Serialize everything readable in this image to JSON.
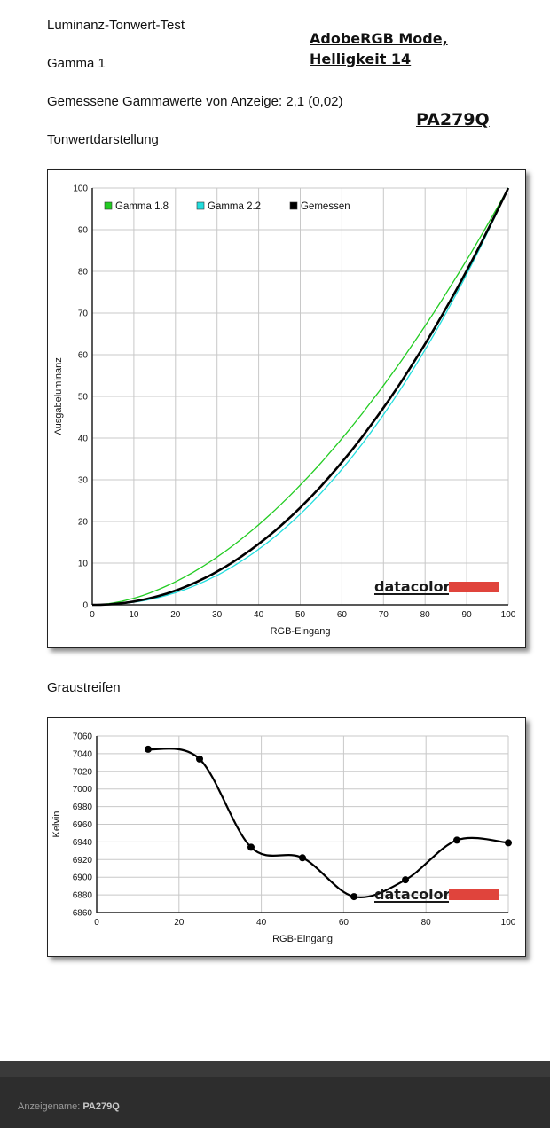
{
  "header": {
    "title": "Luminanz-Tonwert-Test",
    "gamma": "Gamma 1",
    "measured": "Gemessene Gammawerte von Anzeige: 2,1 (0,02)",
    "section1": "Tonwertdarstellung",
    "section2": "Graustreifen"
  },
  "annotations": {
    "mode_line1": "AdobeRGB Mode,",
    "mode_line2": "Helligkeit 14",
    "model": "PA279Q"
  },
  "logo": "datacolor",
  "footer": {
    "label": "Anzeigename:",
    "value": "PA279Q"
  },
  "colors": {
    "gamma18": "#22cc22",
    "gamma22": "#22dddd",
    "measured": "#000000",
    "logo_bar": "#e0443c"
  },
  "chart_data": [
    {
      "type": "line",
      "title": "Tonwertdarstellung",
      "xlabel": "RGB-Eingang",
      "ylabel": "Ausgabeluminanz",
      "xlim": [
        0,
        100
      ],
      "ylim": [
        0,
        100
      ],
      "xticks": [
        0,
        10,
        20,
        30,
        40,
        50,
        60,
        70,
        80,
        90,
        100
      ],
      "yticks": [
        0,
        10,
        20,
        30,
        40,
        50,
        60,
        70,
        80,
        90,
        100
      ],
      "grid": true,
      "legend": "top-left",
      "series": [
        {
          "name": "Gamma 1.8",
          "color": "#22cc22",
          "gamma": 1.8,
          "x": [
            0,
            10,
            20,
            30,
            40,
            50,
            60,
            70,
            80,
            90,
            100
          ],
          "y": [
            0,
            1.6,
            5.5,
            11.5,
            19.2,
            28.7,
            39.9,
            52.6,
            66.9,
            82.7,
            100
          ]
        },
        {
          "name": "Gamma 2.2",
          "color": "#22dddd",
          "gamma": 2.2,
          "x": [
            0,
            10,
            20,
            30,
            40,
            50,
            60,
            70,
            80,
            90,
            100
          ],
          "y": [
            0,
            0.6,
            2.9,
            7.1,
            13.3,
            21.8,
            32.5,
            45.6,
            61.2,
            79.3,
            100
          ]
        },
        {
          "name": "Gemessen",
          "color": "#000000",
          "gamma": 2.1,
          "x": [
            0,
            10,
            20,
            30,
            40,
            50,
            60,
            70,
            80,
            90,
            100
          ],
          "y": [
            0,
            0.8,
            3.4,
            8.0,
            14.6,
            23.3,
            34.2,
            47.3,
            62.6,
            80.2,
            100
          ]
        }
      ]
    },
    {
      "type": "line",
      "title": "Graustreifen",
      "xlabel": "RGB-Eingang",
      "ylabel": "Kelvin",
      "xlim": [
        0,
        100
      ],
      "ylim": [
        6860,
        7060
      ],
      "xticks": [
        0,
        20,
        40,
        60,
        80,
        100
      ],
      "yticks": [
        6860,
        6880,
        6900,
        6920,
        6940,
        6960,
        6980,
        7000,
        7020,
        7040,
        7060
      ],
      "grid": true,
      "series": [
        {
          "color": "#000000",
          "x": [
            12.5,
            25,
            37.5,
            50,
            62.5,
            75,
            87.5,
            100
          ],
          "y": [
            7045,
            7034,
            6934,
            6922,
            6878,
            6897,
            6942,
            6939
          ]
        }
      ]
    }
  ]
}
